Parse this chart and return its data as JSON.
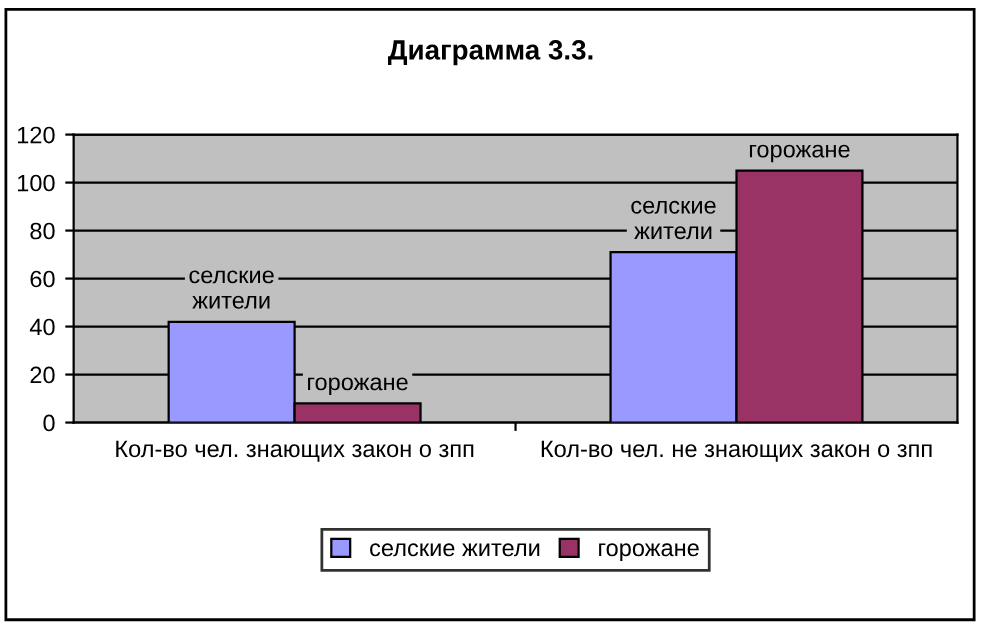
{
  "chart_data": {
    "type": "bar",
    "title": "Диаграмма 3.3.",
    "categories": [
      "Кол-во чел. знающих закон о зпп",
      "Кол-во чел. не знающих закон о зпп"
    ],
    "series": [
      {
        "name": "селские жители",
        "color": "#9999ff",
        "values": [
          42,
          71
        ]
      },
      {
        "name": "горожане",
        "color": "#993366",
        "values": [
          8,
          105
        ]
      }
    ],
    "annotations": [
      {
        "text": "селские\nжители",
        "x": "Кол-во чел. знающих закон о зпп",
        "y": 42
      },
      {
        "text": "горожане",
        "x": "Кол-во чел. знающих закон о зпп",
        "y": 8
      },
      {
        "text": "селские\nжители",
        "x": "Кол-во чел. не знающих закон о зпп",
        "y": 71
      },
      {
        "text": "горожане",
        "x": "Кол-во чел. не знающих закон о зпп",
        "y": 105
      }
    ],
    "ylim": [
      0,
      120
    ],
    "yticks": [
      0,
      20,
      40,
      60,
      80,
      100,
      120
    ],
    "grid": "y",
    "legend": "bottom"
  }
}
